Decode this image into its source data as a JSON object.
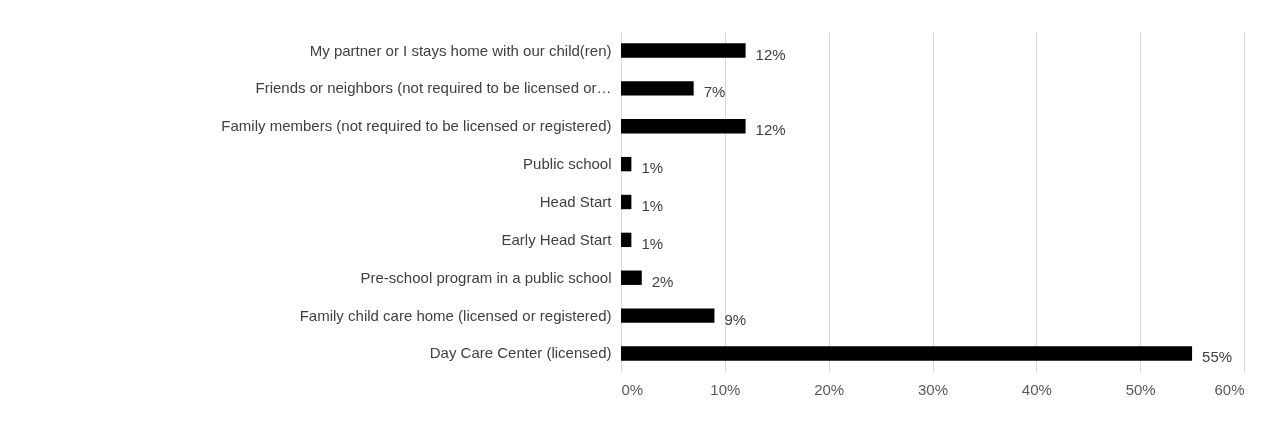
{
  "chart_data": {
    "type": "bar",
    "orientation": "horizontal",
    "categories": [
      "My partner or I stays home with our child(ren)",
      "Friends or neighbors (not required to be licensed or…",
      "Family members (not required to be licensed or registered)",
      "Public school",
      "Head Start",
      "Early Head Start",
      "Pre-school program in a public school",
      "Family child care home (licensed or registered)",
      "Day Care Center (licensed)"
    ],
    "values": [
      12,
      7,
      12,
      1,
      1,
      1,
      2,
      9,
      55
    ],
    "value_labels": [
      "12%",
      "7%",
      "12%",
      "1%",
      "1%",
      "1%",
      "2%",
      "9%",
      "55%"
    ],
    "color": "#000000",
    "xlim": [
      0,
      60
    ],
    "xticks": [
      {
        "value": 0,
        "label": "0%"
      },
      {
        "value": 10,
        "label": "10%"
      },
      {
        "value": 20,
        "label": "20%"
      },
      {
        "value": 30,
        "label": "30%"
      },
      {
        "value": 40,
        "label": "40%"
      },
      {
        "value": 50,
        "label": "50%"
      },
      {
        "value": 60,
        "label": "60%"
      }
    ],
    "grid": "x"
  }
}
